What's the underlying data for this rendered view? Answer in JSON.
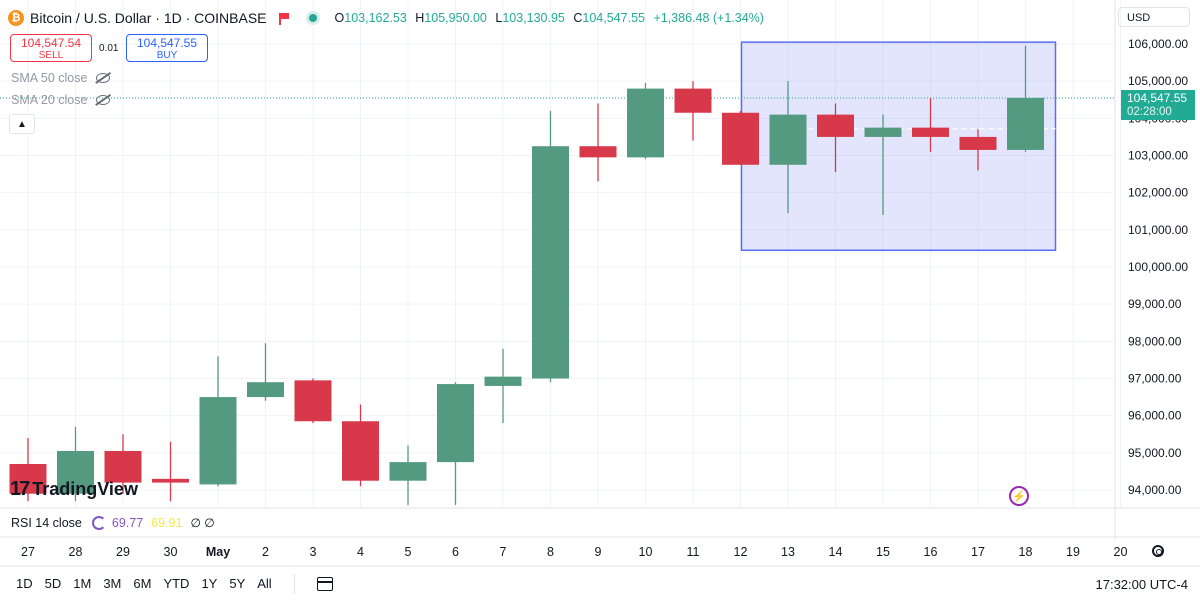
{
  "header": {
    "symbol_title": "Bitcoin / U.S. Dollar · 1D · COINBASE",
    "ohlc": {
      "o_label": "O",
      "o_value": "103,162.53",
      "h_label": "H",
      "h_value": "105,950.00",
      "l_label": "L",
      "l_value": "103,130.95",
      "c_label": "C",
      "c_value": "104,547.55",
      "change": "+1,386.48 (+1.34%)"
    }
  },
  "trade": {
    "sell_price": "104,547.54",
    "sell_label": "SELL",
    "spread": "0.01",
    "buy_price": "104,547.55",
    "buy_label": "BUY"
  },
  "indicators": {
    "sma50": "SMA 50 close",
    "sma20": "SMA 20 close",
    "rsi_label": "RSI 14 close",
    "rsi_value1": "69.77",
    "rsi_value2": "69.91",
    "rsi_slash": "∅ ∅"
  },
  "logo_text": "TradingView",
  "currency": "USD",
  "last_price": "104,547.55",
  "countdown": "02:28:00",
  "timeframes": [
    "1D",
    "5D",
    "1M",
    "3M",
    "6M",
    "YTD",
    "1Y",
    "5Y",
    "All"
  ],
  "clock": "17:32:00 UTC-4",
  "colors": {
    "up": "#539a80",
    "down": "#d8394a",
    "last_price": "#22ab94",
    "selection": "#5c6ef0"
  },
  "chart_data": {
    "type": "candlestick",
    "categories": [
      "27",
      "28",
      "29",
      "30",
      "May",
      "2",
      "3",
      "4",
      "5",
      "6",
      "7",
      "8",
      "9",
      "10",
      "11",
      "12",
      "13",
      "14",
      "15",
      "16",
      "17",
      "18",
      "19",
      "20"
    ],
    "candles": [
      {
        "o": 94700,
        "h": 95400,
        "l": 93700,
        "c": 93900
      },
      {
        "o": 93900,
        "h": 95700,
        "l": 93700,
        "c": 95050
      },
      {
        "o": 95050,
        "h": 95500,
        "l": 93900,
        "c": 94200
      },
      {
        "o": 94300,
        "h": 95300,
        "l": 93700,
        "c": 94200
      },
      {
        "o": 94150,
        "h": 97600,
        "l": 94100,
        "c": 96500
      },
      {
        "o": 96500,
        "h": 97950,
        "l": 96400,
        "c": 96900
      },
      {
        "o": 96950,
        "h": 97000,
        "l": 95800,
        "c": 95850
      },
      {
        "o": 95850,
        "h": 96300,
        "l": 94100,
        "c": 94250
      },
      {
        "o": 94250,
        "h": 95200,
        "l": 93600,
        "c": 94750
      },
      {
        "o": 94750,
        "h": 96900,
        "l": 93600,
        "c": 96850
      },
      {
        "o": 96800,
        "h": 97800,
        "l": 95800,
        "c": 97050
      },
      {
        "o": 97000,
        "h": 104200,
        "l": 96900,
        "c": 103250
      },
      {
        "o": 103250,
        "h": 104400,
        "l": 102300,
        "c": 102950
      },
      {
        "o": 102950,
        "h": 104950,
        "l": 102900,
        "c": 104800
      },
      {
        "o": 104800,
        "h": 105000,
        "l": 103400,
        "c": 104150
      },
      {
        "o": 104150,
        "h": 104200,
        "l": 102750,
        "c": 102750
      },
      {
        "o": 102750,
        "h": 105000,
        "l": 101450,
        "c": 104100
      },
      {
        "o": 104100,
        "h": 104400,
        "l": 102550,
        "c": 103500
      },
      {
        "o": 103500,
        "h": 104100,
        "l": 101400,
        "c": 103750
      },
      {
        "o": 103750,
        "h": 104550,
        "l": 103100,
        "c": 103500
      },
      {
        "o": 103500,
        "h": 103700,
        "l": 102600,
        "c": 103150
      },
      {
        "o": 103150,
        "h": 105950,
        "l": 103100,
        "c": 104550
      }
    ],
    "y_ticks": [
      "94,000.00",
      "95,000.00",
      "96,000.00",
      "97,000.00",
      "98,000.00",
      "99,000.00",
      "100,000.00",
      "101,000.00",
      "102,000.00",
      "103,000.00",
      "104,000.00",
      "105,000.00",
      "106,000.00"
    ],
    "y_tick_values": [
      94000,
      95000,
      96000,
      97000,
      98000,
      99000,
      100000,
      101000,
      102000,
      103000,
      104000,
      105000,
      106000
    ],
    "ylim": [
      93600,
      106600
    ],
    "last_price_value": 104547.55,
    "selection_range": {
      "from_index": 15,
      "to_index": 23,
      "price_low": 100450,
      "price_high": 106050
    },
    "grid": true
  }
}
